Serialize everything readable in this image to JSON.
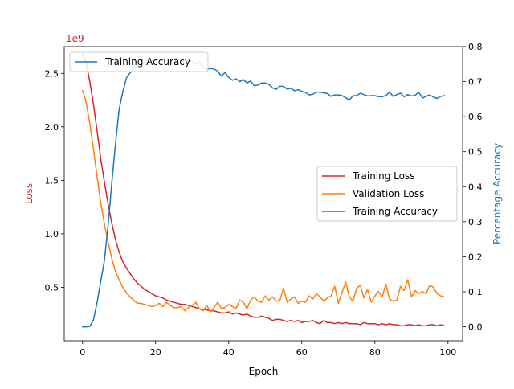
{
  "chart_data": {
    "type": "line",
    "title": "",
    "xlabel": "Epoch",
    "ylabel_left": "Loss",
    "ylabel_right": "Percentage Accuracy",
    "left_scale_text": "1e9",
    "xlim": [
      -5,
      104
    ],
    "ylim_left": [
      0.0,
      2.75
    ],
    "ylim_right": [
      -0.04,
      0.8
    ],
    "x_ticks": [
      "0",
      "20",
      "40",
      "60",
      "80",
      "100"
    ],
    "y_ticks_left": [
      "0.5",
      "1.0",
      "1.5",
      "2.0",
      "2.5"
    ],
    "y_ticks_right": [
      "0.0",
      "0.1",
      "0.2",
      "0.3",
      "0.4",
      "0.5",
      "0.6",
      "0.7",
      "0.8"
    ],
    "colors": {
      "left_axis": "#d62728",
      "right_axis": "#1f77b4"
    },
    "legend_left": {
      "placement": "upper-left",
      "entries": [
        {
          "label": "Training Accuracy",
          "color": "#1f77b4"
        }
      ]
    },
    "legend_right": {
      "placement": "center-right",
      "entries": [
        {
          "label": "Training Loss",
          "color": "#d62728"
        },
        {
          "label": "Validation Loss",
          "color": "#ff7f0e"
        },
        {
          "label": "Training Accuracy",
          "color": "#1f77b4"
        }
      ]
    },
    "x": [
      0,
      1,
      2,
      3,
      4,
      5,
      6,
      7,
      8,
      9,
      10,
      11,
      12,
      13,
      14,
      15,
      16,
      17,
      18,
      19,
      20,
      21,
      22,
      23,
      24,
      25,
      26,
      27,
      28,
      29,
      30,
      31,
      32,
      33,
      34,
      35,
      36,
      37,
      38,
      39,
      40,
      41,
      42,
      43,
      44,
      45,
      46,
      47,
      48,
      49,
      50,
      51,
      52,
      53,
      54,
      55,
      56,
      57,
      58,
      59,
      60,
      61,
      62,
      63,
      64,
      65,
      66,
      67,
      68,
      69,
      70,
      71,
      72,
      73,
      74,
      75,
      76,
      77,
      78,
      79,
      80,
      81,
      82,
      83,
      84,
      85,
      86,
      87,
      88,
      89,
      90,
      91,
      92,
      93,
      94,
      95,
      96,
      97,
      98,
      99
    ],
    "series": [
      {
        "name": "Training Loss",
        "axis": "left",
        "color": "#d62728",
        "values": [
          2.68,
          2.6,
          2.42,
          2.21,
          1.96,
          1.7,
          1.48,
          1.28,
          1.1,
          0.95,
          0.83,
          0.74,
          0.68,
          0.63,
          0.58,
          0.54,
          0.51,
          0.48,
          0.46,
          0.44,
          0.42,
          0.41,
          0.4,
          0.38,
          0.37,
          0.36,
          0.35,
          0.34,
          0.34,
          0.33,
          0.32,
          0.31,
          0.3,
          0.29,
          0.29,
          0.28,
          0.28,
          0.27,
          0.26,
          0.26,
          0.27,
          0.25,
          0.26,
          0.25,
          0.24,
          0.25,
          0.23,
          0.22,
          0.22,
          0.23,
          0.22,
          0.21,
          0.19,
          0.2,
          0.2,
          0.19,
          0.18,
          0.19,
          0.18,
          0.19,
          0.17,
          0.18,
          0.18,
          0.19,
          0.17,
          0.16,
          0.19,
          0.17,
          0.17,
          0.16,
          0.17,
          0.16,
          0.17,
          0.16,
          0.16,
          0.16,
          0.15,
          0.17,
          0.16,
          0.16,
          0.16,
          0.15,
          0.16,
          0.15,
          0.16,
          0.15,
          0.15,
          0.14,
          0.14,
          0.15,
          0.15,
          0.14,
          0.15,
          0.14,
          0.14,
          0.15,
          0.15,
          0.14,
          0.15,
          0.14
        ]
      },
      {
        "name": "Validation Loss",
        "axis": "left",
        "color": "#ff7f0e",
        "values": [
          2.34,
          2.23,
          2.03,
          1.79,
          1.53,
          1.29,
          1.09,
          0.92,
          0.77,
          0.65,
          0.57,
          0.5,
          0.45,
          0.41,
          0.38,
          0.35,
          0.35,
          0.34,
          0.33,
          0.32,
          0.33,
          0.35,
          0.32,
          0.36,
          0.33,
          0.31,
          0.31,
          0.32,
          0.28,
          0.31,
          0.33,
          0.36,
          0.3,
          0.28,
          0.33,
          0.27,
          0.31,
          0.36,
          0.3,
          0.31,
          0.34,
          0.32,
          0.3,
          0.38,
          0.36,
          0.3,
          0.38,
          0.41,
          0.37,
          0.36,
          0.42,
          0.38,
          0.41,
          0.37,
          0.38,
          0.49,
          0.36,
          0.39,
          0.41,
          0.35,
          0.37,
          0.36,
          0.42,
          0.39,
          0.44,
          0.41,
          0.37,
          0.4,
          0.42,
          0.51,
          0.35,
          0.45,
          0.55,
          0.41,
          0.37,
          0.49,
          0.52,
          0.4,
          0.48,
          0.36,
          0.42,
          0.46,
          0.41,
          0.53,
          0.39,
          0.37,
          0.38,
          0.51,
          0.47,
          0.57,
          0.41,
          0.47,
          0.44,
          0.46,
          0.44,
          0.52,
          0.5,
          0.44,
          0.42,
          0.41
        ]
      },
      {
        "name": "Training Accuracy",
        "axis": "right",
        "color": "#1f77b4",
        "values": [
          0.0,
          0.0,
          0.001,
          0.02,
          0.07,
          0.13,
          0.19,
          0.29,
          0.41,
          0.52,
          0.62,
          0.67,
          0.71,
          0.725,
          0.735,
          0.745,
          0.75,
          0.752,
          0.755,
          0.758,
          0.76,
          0.762,
          0.763,
          0.764,
          0.765,
          0.766,
          0.765,
          0.758,
          0.755,
          0.76,
          0.757,
          0.75,
          0.755,
          0.74,
          0.735,
          0.738,
          0.736,
          0.73,
          0.716,
          0.726,
          0.712,
          0.704,
          0.708,
          0.7,
          0.706,
          0.696,
          0.702,
          0.688,
          0.69,
          0.696,
          0.696,
          0.692,
          0.682,
          0.678,
          0.687,
          0.686,
          0.679,
          0.681,
          0.674,
          0.677,
          0.672,
          0.669,
          0.662,
          0.664,
          0.67,
          0.67,
          0.668,
          0.666,
          0.658,
          0.662,
          0.662,
          0.66,
          0.654,
          0.647,
          0.66,
          0.66,
          0.667,
          0.663,
          0.659,
          0.66,
          0.66,
          0.657,
          0.657,
          0.66,
          0.67,
          0.658,
          0.663,
          0.667,
          0.657,
          0.663,
          0.659,
          0.661,
          0.67,
          0.653,
          0.658,
          0.662,
          0.656,
          0.652,
          0.658,
          0.66
        ]
      }
    ]
  }
}
